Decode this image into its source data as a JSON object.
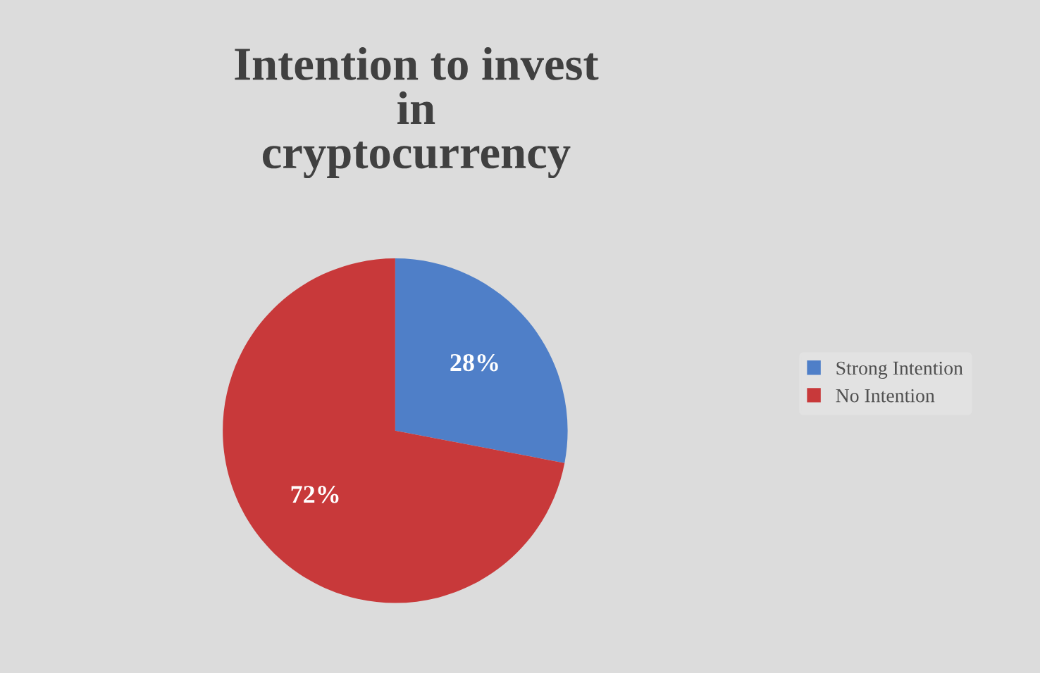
{
  "chart_data": {
    "type": "pie",
    "title": "Intention to invest\nin\ncryptocurrency",
    "categories": [
      "Strong Intention",
      "No Intention"
    ],
    "values": [
      28,
      72
    ],
    "value_labels": [
      "28%",
      "72%"
    ],
    "colors": [
      "#4f7fc8",
      "#c8393a"
    ],
    "legend": "right"
  }
}
